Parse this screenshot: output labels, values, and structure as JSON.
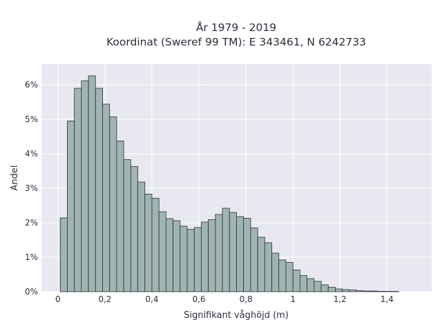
{
  "chart_data": {
    "type": "bar",
    "title": "År 1979 - 2019",
    "subtitle": "Koordinat (Sweref 99 TM): E 343461, N 6242733",
    "xlabel": "Signifikant våghöjd (m)",
    "ylabel": "Andel",
    "xlim": [
      -0.07,
      1.59
    ],
    "ylim": [
      0,
      0.066
    ],
    "bin_width": 0.03,
    "bin_start": 0.01,
    "x_ticks": [
      0,
      0.2,
      0.4,
      0.6,
      0.8,
      1,
      1.2,
      1.4
    ],
    "x_tick_labels": [
      "0",
      "0,2",
      "0,4",
      "0,6",
      "0,8",
      "1",
      "1,2",
      "1,4"
    ],
    "y_ticks": [
      0,
      0.01,
      0.02,
      0.03,
      0.04,
      0.05,
      0.06
    ],
    "y_tick_labels": [
      "0%",
      "1%",
      "2%",
      "3%",
      "4%",
      "5%",
      "6%"
    ],
    "values": [
      0.0214,
      0.0495,
      0.059,
      0.0612,
      0.0626,
      0.059,
      0.0544,
      0.0507,
      0.0437,
      0.0383,
      0.0363,
      0.0318,
      0.0283,
      0.0271,
      0.0232,
      0.0212,
      0.0206,
      0.019,
      0.0181,
      0.0186,
      0.0202,
      0.0209,
      0.0224,
      0.0242,
      0.023,
      0.0218,
      0.0213,
      0.0185,
      0.0158,
      0.0142,
      0.0112,
      0.0092,
      0.0085,
      0.0063,
      0.0047,
      0.0038,
      0.003,
      0.002,
      0.0013,
      0.0008,
      0.0006,
      0.0005,
      0.0003,
      0.0002,
      0.0002,
      0.0001,
      0.0001,
      0.0001
    ],
    "grid": true,
    "colors": {
      "bar_fill": "#9fb4b3",
      "bar_stroke": "#2b2f2f",
      "plot_background": "#e8e8f1",
      "grid": "#ffffff",
      "text": "#2a2f3a"
    }
  }
}
